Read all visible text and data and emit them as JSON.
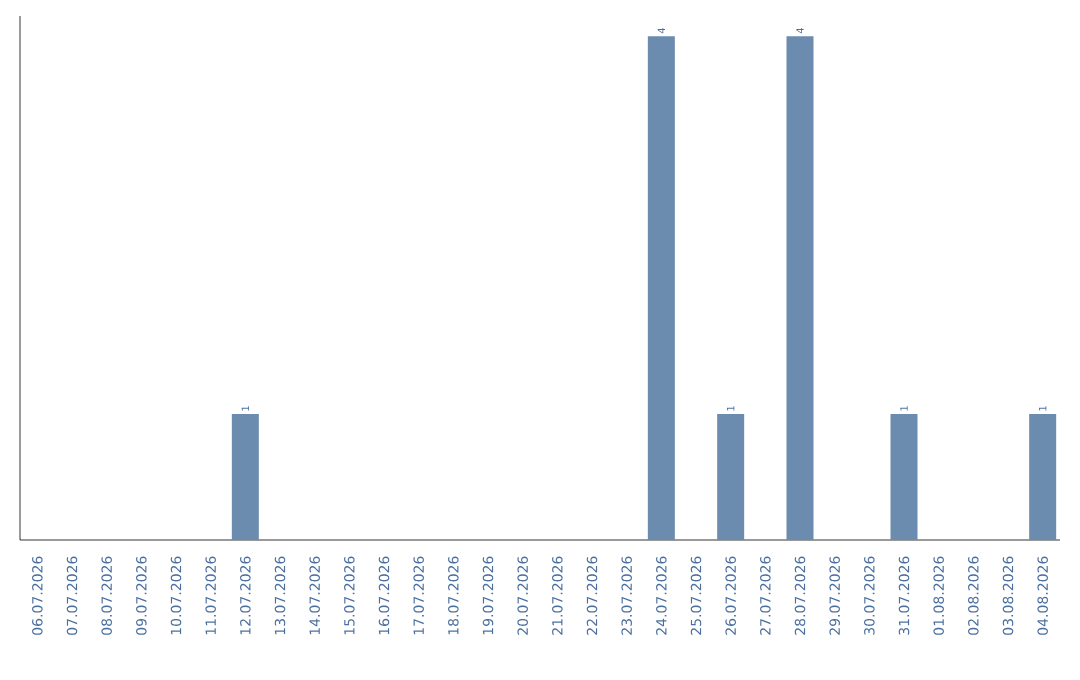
{
  "chart_data": {
    "type": "bar",
    "categories": [
      "06.07.2026",
      "07.07.2026",
      "08.07.2026",
      "09.07.2026",
      "10.07.2026",
      "11.07.2026",
      "12.07.2026",
      "13.07.2026",
      "14.07.2026",
      "15.07.2026",
      "16.07.2026",
      "17.07.2026",
      "18.07.2026",
      "19.07.2026",
      "20.07.2026",
      "21.07.2026",
      "22.07.2026",
      "23.07.2026",
      "24.07.2026",
      "25.07.2026",
      "26.07.2026",
      "27.07.2026",
      "28.07.2026",
      "29.07.2026",
      "30.07.2026",
      "31.07.2026",
      "01.08.2026",
      "02.08.2026",
      "03.08.2026",
      "04.08.2026"
    ],
    "values": [
      0,
      0,
      0,
      0,
      0,
      0,
      1,
      0,
      0,
      0,
      0,
      0,
      0,
      0,
      0,
      0,
      0,
      0,
      4,
      0,
      1,
      0,
      4,
      0,
      0,
      1,
      0,
      0,
      0,
      1
    ],
    "value_labels": [
      null,
      null,
      null,
      null,
      null,
      null,
      "1",
      null,
      null,
      null,
      null,
      null,
      null,
      null,
      null,
      null,
      null,
      null,
      "4",
      null,
      "1",
      null,
      "4",
      null,
      null,
      "1",
      null,
      null,
      null,
      "1"
    ],
    "color": "#6b8cae",
    "relative": false
  }
}
